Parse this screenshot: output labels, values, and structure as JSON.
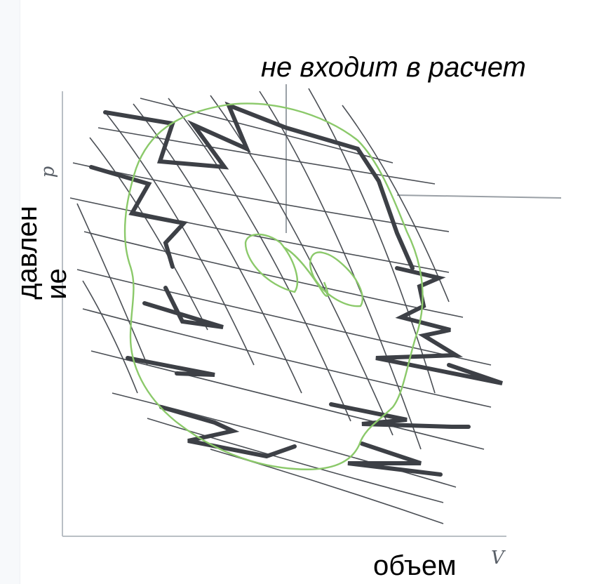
{
  "annotation_top": "не входит в расчет",
  "y_label": {
    "line1": "давлен",
    "line2": "ие"
  },
  "x_label": "объем",
  "axis_letters": {
    "x": "V",
    "y": "p"
  },
  "colors": {
    "thin_lines": "#4b4f55",
    "bold_zigzag": "#3d4046",
    "green_contour": "#8bc96a",
    "axes": "#b9bfc5",
    "background": "#ffffff"
  }
}
